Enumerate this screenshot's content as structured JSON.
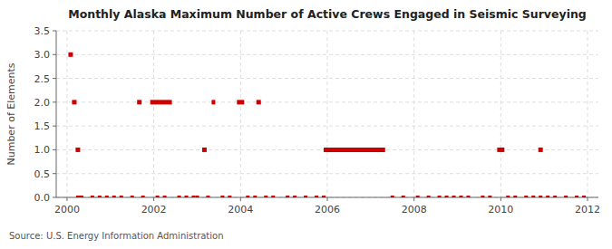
{
  "chart_data": {
    "type": "segment",
    "title": "Monthly Alaska Maximum Number of Active Crews Engaged in Seismic Surveying",
    "ylabel": "Number of Elements",
    "annotation": "Source: U.S. Energy Information Administration",
    "xlim": [
      1999.75,
      2012.25
    ],
    "ylim": [
      0.0,
      3.5
    ],
    "xticks": [
      2000,
      2002,
      2004,
      2006,
      2008,
      2010,
      2012
    ],
    "yticks": [
      {
        "value": 0.0,
        "label": "0.0"
      },
      0.5,
      {
        "value": 1.0,
        "label": "1.0"
      },
      1.5,
      {
        "value": 2.0,
        "label": "2.0"
      },
      2.5,
      {
        "value": 3.0,
        "label": "3.0"
      },
      3.5
    ],
    "grid": true,
    "series": [
      {
        "type": "segment",
        "color": "#CC0000",
        "x": [
          2000.0833,
          2000.1667,
          2000.25,
          2001.6667,
          2001.9167,
          2003.1667,
          2003.3333,
          2003.9167,
          2004.4167,
          2005.9167,
          2009.9167,
          2010.9167
        ],
        "x_end": [
          2000.0833,
          2000.1667,
          2000.25,
          2001.6667,
          2002.4167,
          2003.1667,
          2003.4167,
          2004.0833,
          2004.4167,
          2007.3333,
          2010.0833,
          2010.9167
        ],
        "values": [
          3.0,
          2.0,
          1.0,
          2.0,
          2.0,
          1.0,
          2.0,
          2.0,
          2.0,
          1.0,
          1.0,
          1.0
        ]
      },
      {
        "type": "scatter",
        "marker": "square",
        "color": "#CC0000",
        "x": [
          2000.25,
          2000.3333,
          2000.5833,
          2000.75,
          2000.9167,
          2001.0833,
          2001.25,
          2001.5,
          2001.75,
          2002.0833,
          2002.25,
          2002.5833,
          2002.75,
          2002.9167,
          2003.0,
          2003.25,
          2003.5833,
          2003.75,
          2004.1667,
          2004.3333,
          2004.5833,
          2004.75,
          2005.0833,
          2005.25,
          2005.5,
          2005.75,
          2005.9167,
          2007.5,
          2007.75,
          2008.0833,
          2008.3333,
          2008.5833,
          2008.75,
          2008.9167,
          2009.0833,
          2009.25,
          2009.5833,
          2009.75,
          2010.1667,
          2010.3333,
          2010.5833,
          2010.75,
          2010.9167,
          2011.0833,
          2011.25,
          2011.5,
          2011.75,
          2011.9167
        ],
        "values": [
          0.0,
          0.0,
          0.0,
          0.0,
          0.0,
          0.0,
          0.0,
          0.0,
          0.0,
          0.0,
          0.0,
          0.0,
          0.0,
          0.0,
          0.0,
          0.0,
          0.0,
          0.0,
          0.0,
          0.0,
          0.0,
          0.0,
          0.0,
          0.0,
          0.0,
          0.0,
          0.0,
          0.0,
          0.0,
          0.0,
          0.0,
          0.0,
          0.0,
          0.0,
          0.0,
          0.0,
          0.0,
          0.0,
          0.0,
          0.0,
          0.0,
          0.0,
          0.0,
          0.0,
          0.0,
          0.0,
          0.0,
          0.0
        ]
      }
    ]
  }
}
